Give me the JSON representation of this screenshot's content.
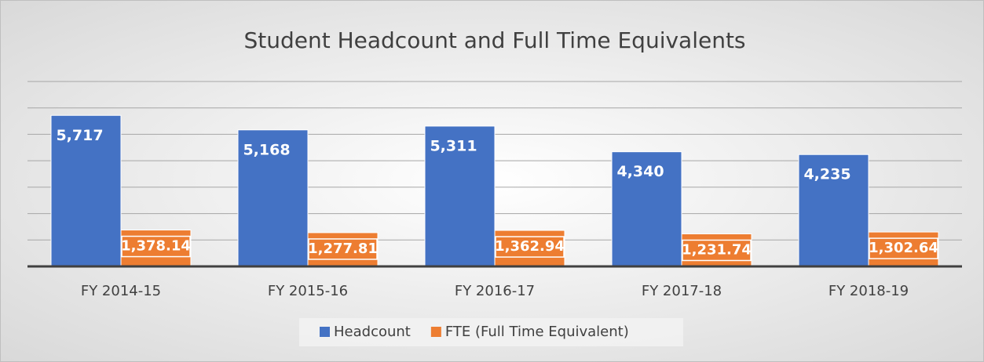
{
  "chart_data": {
    "type": "bar",
    "title": "Student Headcount and Full Time Equivalents",
    "categories": [
      "FY 2014-15",
      "FY 2015-16",
      "FY 2016-17",
      "FY 2017-18",
      "FY 2018-19"
    ],
    "series": [
      {
        "name": "Headcount",
        "color": "#4472c4",
        "values": [
          5717,
          5168,
          5311,
          4340,
          4235
        ],
        "value_labels": [
          "5,717",
          "5,168",
          "5,311",
          "4,340",
          "4,235"
        ]
      },
      {
        "name": "FTE (Full Time Equivalent)",
        "color": "#ed7d31",
        "values": [
          1378.14,
          1277.81,
          1362.94,
          1231.74,
          1302.64
        ],
        "value_labels": [
          "1,378.14",
          "1,277.81",
          "1,362.94",
          "1,231.74",
          "1,302.64"
        ]
      }
    ],
    "ylim": [
      0,
      7000
    ],
    "yticks": [
      0,
      1000,
      2000,
      3000,
      4000,
      5000,
      6000,
      7000
    ],
    "grid": true,
    "legend": "bottom"
  }
}
